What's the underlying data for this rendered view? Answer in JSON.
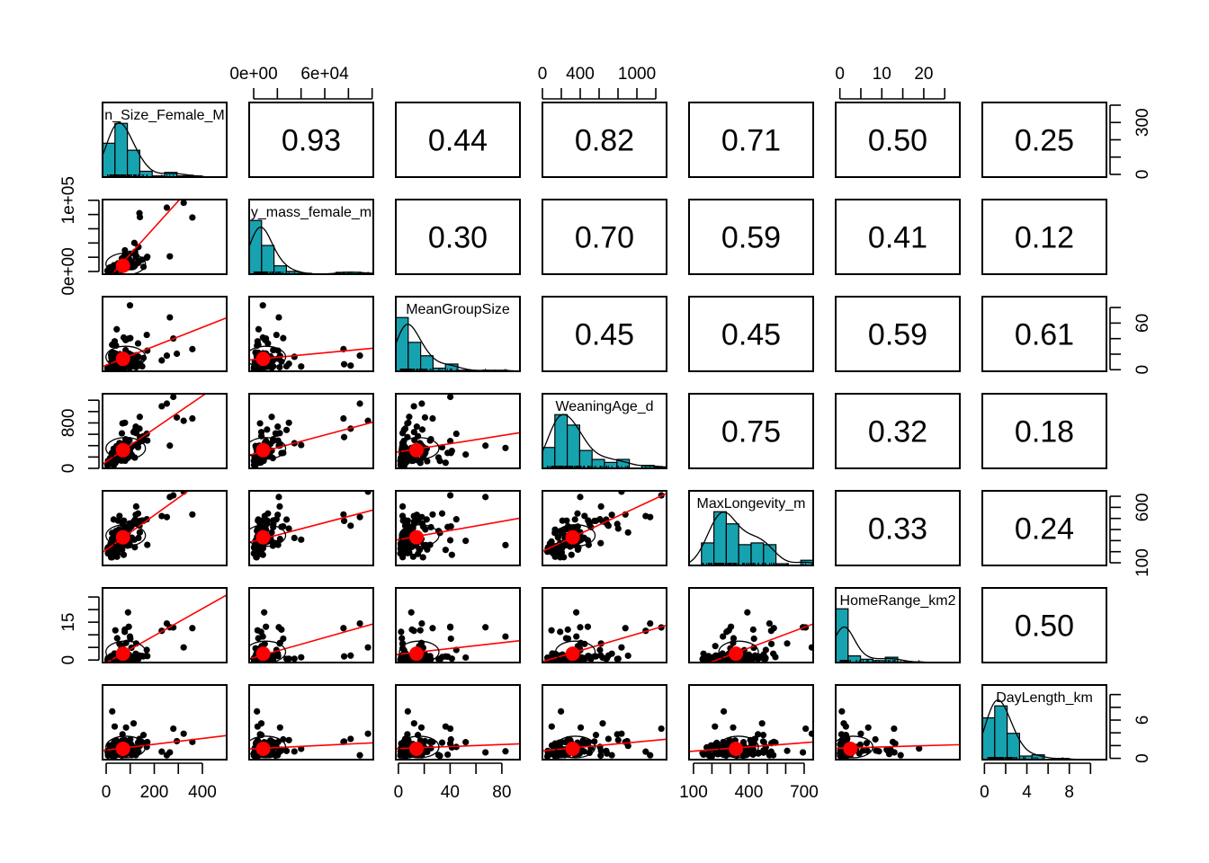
{
  "chart_data": {
    "type": "scatter-matrix",
    "variables": [
      "Brain_Size_Female_Mean",
      "Body_mass_female_mean",
      "MeanGroupSize",
      "WeaningAge_d",
      "MaxLongevity_m",
      "HomeRange_km2",
      "DayLength_km"
    ],
    "diagonal_labels": [
      "n_Size_Female_M",
      "y_mass_female_m",
      "MeanGroupSize",
      "WeaningAge_d",
      "MaxLongevity_m",
      "HomeRange_km2",
      "DayLength_km"
    ],
    "correlations": [
      [
        null,
        0.93,
        0.44,
        0.82,
        0.71,
        0.5,
        0.25
      ],
      [
        null,
        null,
        0.3,
        0.7,
        0.59,
        0.41,
        0.12
      ],
      [
        null,
        null,
        null,
        0.45,
        0.45,
        0.59,
        0.61
      ],
      [
        null,
        null,
        null,
        null,
        0.75,
        0.32,
        0.18
      ],
      [
        null,
        null,
        null,
        null,
        null,
        0.33,
        0.24
      ],
      [
        null,
        null,
        null,
        null,
        null,
        null,
        0.5
      ]
    ],
    "correlation_labels": [
      [
        "",
        "0.93",
        "0.44",
        "0.82",
        "0.71",
        "0.50",
        "0.25"
      ],
      [
        "",
        "",
        "0.30",
        "0.70",
        "0.59",
        "0.41",
        "0.12"
      ],
      [
        "",
        "",
        "",
        "0.45",
        "0.45",
        "0.59",
        "0.61"
      ],
      [
        "",
        "",
        "",
        "",
        "0.75",
        "0.32",
        "0.18"
      ],
      [
        "",
        "",
        "",
        "",
        "",
        "0.33",
        "0.24"
      ],
      [
        "",
        "",
        "",
        "",
        "",
        "",
        "0.50"
      ]
    ],
    "axis_ranges": [
      [
        -15,
        501
      ],
      [
        -3800,
        101000
      ],
      [
        -2,
        94
      ],
      [
        0,
        1314
      ],
      [
        76,
        749
      ],
      [
        -1,
        28.6
      ],
      [
        -0.2,
        11.5
      ]
    ],
    "axes": {
      "top": [
        {
          "col": 1,
          "ticks": [
            0,
            20000,
            40000,
            60000,
            80000,
            100000
          ],
          "labels": [
            {
              "v": 0,
              "t": "0e+00"
            },
            {
              "v": 60000,
              "t": "6e+04"
            }
          ]
        },
        {
          "col": 3,
          "ticks": [
            0,
            200,
            400,
            600,
            800,
            1000,
            1200
          ],
          "labels": [
            {
              "v": 0,
              "t": "0"
            },
            {
              "v": 400,
              "t": "400"
            },
            {
              "v": 1000,
              "t": "1000"
            }
          ]
        },
        {
          "col": 5,
          "ticks": [
            0,
            5,
            10,
            15,
            20,
            25
          ],
          "labels": [
            {
              "v": 0,
              "t": "0"
            },
            {
              "v": 10,
              "t": "10"
            },
            {
              "v": 20,
              "t": "20"
            }
          ]
        }
      ],
      "bottom": [
        {
          "col": 0,
          "ticks": [
            0,
            100,
            200,
            300,
            400
          ],
          "labels": [
            {
              "v": 0,
              "t": "0"
            },
            {
              "v": 200,
              "t": "200"
            },
            {
              "v": 400,
              "t": "400"
            }
          ]
        },
        {
          "col": 2,
          "ticks": [
            0,
            20,
            40,
            60,
            80
          ],
          "labels": [
            {
              "v": 0,
              "t": "0"
            },
            {
              "v": 40,
              "t": "40"
            },
            {
              "v": 80,
              "t": "80"
            }
          ]
        },
        {
          "col": 4,
          "ticks": [
            100,
            200,
            300,
            400,
            500,
            600,
            700
          ],
          "labels": [
            {
              "v": 100,
              "t": "100"
            },
            {
              "v": 400,
              "t": "400"
            },
            {
              "v": 700,
              "t": "700"
            }
          ]
        },
        {
          "col": 6,
          "ticks": [
            0,
            2,
            4,
            6,
            8,
            10
          ],
          "labels": [
            {
              "v": 0,
              "t": "0"
            },
            {
              "v": 4,
              "t": "4"
            },
            {
              "v": 8,
              "t": "8"
            }
          ]
        }
      ],
      "left": [
        {
          "row": 1,
          "ticks": [
            0,
            20000,
            40000,
            60000,
            80000,
            100000
          ],
          "labels": [
            {
              "v": 0,
              "t": "0e+00"
            },
            {
              "v": 100000,
              "t": "1e+05"
            }
          ]
        },
        {
          "row": 3,
          "ticks": [
            0,
            200,
            400,
            600,
            800,
            1000,
            1200
          ],
          "labels": [
            {
              "v": 0,
              "t": "0"
            },
            {
              "v": 800,
              "t": "800"
            }
          ]
        },
        {
          "row": 5,
          "ticks": [
            0,
            5,
            10,
            15,
            20,
            25
          ],
          "labels": [
            {
              "v": 0,
              "t": "0"
            },
            {
              "v": 15,
              "t": "15"
            }
          ]
        }
      ],
      "right": [
        {
          "row": 0,
          "hist_ticks": [
            0,
            100,
            200,
            300,
            400
          ],
          "labels": [
            {
              "v": 0,
              "t": "0"
            },
            {
              "v": 300,
              "t": "300"
            }
          ],
          "max": 400
        },
        {
          "row": 2,
          "ticks": [
            0,
            20,
            40,
            60,
            80
          ],
          "labels": [
            {
              "v": 0,
              "t": "0"
            },
            {
              "v": 60,
              "t": "60"
            }
          ]
        },
        {
          "row": 4,
          "ticks": [
            100,
            200,
            300,
            400,
            500,
            600,
            700
          ],
          "labels": [
            {
              "v": 100,
              "t": "100"
            },
            {
              "v": 600,
              "t": "600"
            }
          ]
        },
        {
          "row": 6,
          "ticks": [
            0,
            2,
            4,
            6,
            8,
            10
          ],
          "labels": [
            {
              "v": 0,
              "t": "0"
            },
            {
              "v": 6,
              "t": "6"
            }
          ]
        }
      ]
    },
    "means": [
      70,
      8000,
      14,
      320,
      330,
      2.5,
      1.5
    ],
    "colors": {
      "histogram": "#17A2B0",
      "points": "#000000",
      "mean": "#FF0000",
      "regression": "#FF0000"
    },
    "lower_panels": "scatter with linear fit, correlation ellipse, mean point",
    "upper_panels": "correlation coefficient",
    "diagonal_panels": "histogram with density curve"
  }
}
